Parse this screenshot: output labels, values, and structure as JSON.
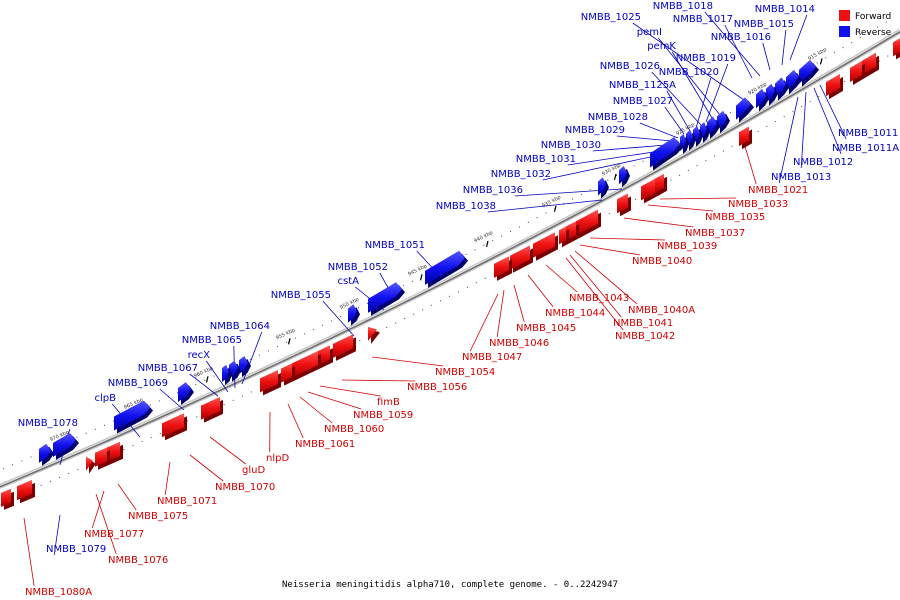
{
  "legend": {
    "forward_label": "Forward",
    "reverse_label": "Reverse",
    "forward_color": "#ee1111",
    "reverse_color": "#1111ee"
  },
  "caption": "Neisseria meningitidis alpha710, complete genome. - 0..2242947",
  "kbp_marks": [
    "915 kbp",
    "920 kbp",
    "925 kbp",
    "930 kbp",
    "935 kbp",
    "940 kbp",
    "945 kbp",
    "950 kbp",
    "955 kbp",
    "960 kbp",
    "965 kbp",
    "970 kbp"
  ],
  "reverse_genes": [
    "NMBB_1014",
    "NMBB_1015",
    "NMBB_1016",
    "NMBB_1018",
    "NMBB_1017",
    "NMBB_1025",
    "pemI",
    "pemK",
    "NMBB_1019",
    "NMBB_1026",
    "NMBB_1020",
    "NMBB_1125A",
    "NMBB_1027",
    "NMBB_1028",
    "NMBB_1029",
    "NMBB_1030",
    "NMBB_1031",
    "NMBB_1032",
    "NMBB_1036",
    "NMBB_1038",
    "NMBB_1051",
    "NMBB_1052",
    "cstA",
    "NMBB_1055",
    "NMBB_1064",
    "NMBB_1065",
    "recX",
    "NMBB_1067",
    "NMBB_1069",
    "clpB",
    "NMBB_1078",
    "NMBB_1011",
    "NMBB_1011A",
    "NMBB_1012",
    "NMBB_1013",
    "NMBB_1079"
  ],
  "forward_genes": [
    "NMBB_1021",
    "NMBB_1033",
    "NMBB_1035",
    "NMBB_1037",
    "NMBB_1039",
    "NMBB_1040",
    "NMBB_1043",
    "NMBB_1040A",
    "NMBB_1044",
    "NMBB_1041",
    "NMBB_1045",
    "NMBB_1042",
    "NMBB_1046",
    "NMBB_1047",
    "NMBB_1054",
    "NMBB_1056",
    "fimB",
    "NMBB_1059",
    "NMBB_1060",
    "NMBB_1061",
    "nlpD",
    "gluD",
    "NMBB_1070",
    "NMBB_1071",
    "NMBB_1075",
    "NMBB_1077",
    "NMBB_1076",
    "NMBB_1080A"
  ]
}
